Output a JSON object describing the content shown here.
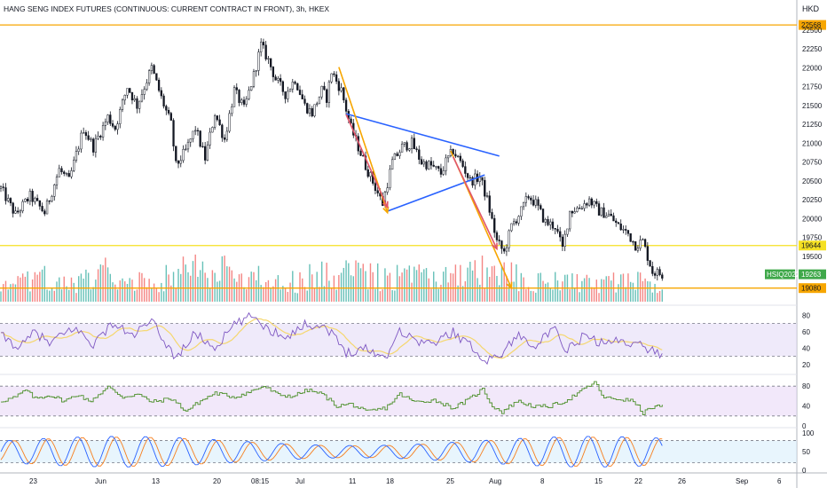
{
  "chart_data": [
    {
      "type": "candlestick",
      "title": "HANG SENG INDEX FUTURES (CONTINUOUS: CURRENT CONTRACT IN FRONT), 3h, HKEX",
      "currency": "HKD",
      "ylim": [
        18900,
        22640
      ],
      "y_ticks": [
        19500,
        19750,
        20000,
        20250,
        20500,
        20750,
        21000,
        21250,
        21500,
        21750,
        22000,
        22250,
        22500
      ],
      "x_ticks": [
        "23",
        "Jun",
        "13",
        "20",
        "08:15",
        "Jul",
        "11",
        "18",
        "25",
        "Aug",
        "8",
        "15",
        "22",
        "26",
        "Sep",
        "6"
      ],
      "price_path": [
        [
          0,
          20400
        ],
        [
          6,
          20050
        ],
        [
          12,
          20300
        ],
        [
          18,
          20080
        ],
        [
          24,
          20650
        ],
        [
          28,
          20500
        ],
        [
          34,
          21200
        ],
        [
          38,
          20950
        ],
        [
          44,
          21350
        ],
        [
          47,
          21200
        ],
        [
          52,
          21750
        ],
        [
          56,
          21500
        ],
        [
          62,
          22000
        ],
        [
          66,
          21600
        ],
        [
          70,
          21250
        ],
        [
          72,
          20700
        ],
        [
          76,
          20900
        ],
        [
          80,
          21200
        ],
        [
          84,
          20800
        ],
        [
          88,
          21400
        ],
        [
          92,
          21050
        ],
        [
          96,
          21700
        ],
        [
          100,
          21450
        ],
        [
          104,
          21900
        ],
        [
          107,
          22300
        ],
        [
          110,
          22100
        ],
        [
          113,
          21850
        ],
        [
          117,
          21650
        ],
        [
          121,
          21850
        ],
        [
          125,
          21500
        ],
        [
          128,
          21400
        ],
        [
          132,
          21700
        ],
        [
          134,
          21600
        ],
        [
          136,
          21950
        ],
        [
          140,
          21700
        ],
        [
          144,
          21200
        ],
        [
          150,
          20700
        ],
        [
          157,
          20200
        ],
        [
          161,
          20750
        ],
        [
          165,
          20950
        ],
        [
          169,
          21000
        ],
        [
          173,
          20750
        ],
        [
          177,
          20700
        ],
        [
          181,
          20600
        ],
        [
          183,
          20750
        ],
        [
          186,
          20900
        ],
        [
          190,
          20700
        ],
        [
          193,
          20500
        ],
        [
          197,
          20550
        ],
        [
          200,
          20250
        ],
        [
          204,
          19700
        ],
        [
          207,
          19550
        ],
        [
          210,
          19900
        ],
        [
          214,
          20100
        ],
        [
          217,
          20300
        ],
        [
          220,
          20200
        ],
        [
          224,
          19950
        ],
        [
          228,
          19900
        ],
        [
          231,
          19600
        ],
        [
          234,
          20100
        ],
        [
          238,
          20150
        ],
        [
          242,
          20250
        ],
        [
          246,
          20100
        ],
        [
          250,
          20050
        ],
        [
          254,
          19900
        ],
        [
          258,
          19800
        ],
        [
          261,
          19650
        ],
        [
          264,
          19700
        ],
        [
          268,
          19300
        ],
        [
          272,
          19260
        ]
      ],
      "volume_path": [
        [
          0,
          0.25
        ],
        [
          20,
          0.5
        ],
        [
          30,
          0.3
        ],
        [
          40,
          0.6
        ],
        [
          60,
          0.4
        ],
        [
          80,
          0.7
        ],
        [
          100,
          0.5
        ],
        [
          120,
          0.4
        ],
        [
          140,
          0.6
        ],
        [
          160,
          0.5
        ],
        [
          180,
          0.45
        ],
        [
          200,
          0.6
        ],
        [
          220,
          0.4
        ],
        [
          240,
          0.35
        ],
        [
          260,
          0.4
        ],
        [
          272,
          0.3
        ]
      ],
      "horizontal_levels": [
        {
          "price": 22568,
          "label": "22568",
          "color": "#f7a600"
        },
        {
          "price": 19644,
          "label": "19644",
          "color": "#f5e022"
        },
        {
          "price": 19080,
          "label": "19080",
          "color": "#f7a600"
        }
      ],
      "last_price": {
        "price": 19263,
        "label": "19263",
        "symbol": "HSIQ2022",
        "color": "#3fa84a"
      },
      "drawings": [
        {
          "name": "upper-trendline",
          "color": "#2962ff",
          "points": [
            [
              142,
              21390
            ],
            [
              205,
              20830
            ]
          ]
        },
        {
          "name": "lower-trendline",
          "color": "#2962ff",
          "points": [
            [
              159,
              20100
            ],
            [
              199,
              20580
            ]
          ]
        },
        {
          "name": "orange-arrow-1",
          "color": "#f7a600",
          "points": [
            [
              139,
              22010
            ],
            [
              159,
              20080
            ]
          ]
        },
        {
          "name": "red-arrow-1",
          "color": "#e0566b",
          "points": [
            [
              142,
              21380
            ],
            [
              159,
              20150
            ]
          ]
        },
        {
          "name": "orange-arrow-2",
          "color": "#f7a600",
          "points": [
            [
              185,
              20900
            ],
            [
              210,
              19080
            ]
          ]
        },
        {
          "name": "red-arrow-2",
          "color": "#e0566b",
          "points": [
            [
              186,
              20820
            ],
            [
              204,
              19600
            ]
          ]
        }
      ]
    },
    {
      "type": "line",
      "name": "rsi",
      "ylim": [
        10,
        90
      ],
      "y_ticks": [
        20,
        40,
        60,
        80
      ],
      "band": [
        30,
        70
      ],
      "path": [
        [
          0,
          55
        ],
        [
          8,
          40
        ],
        [
          14,
          60
        ],
        [
          20,
          45
        ],
        [
          30,
          65
        ],
        [
          38,
          45
        ],
        [
          46,
          70
        ],
        [
          54,
          55
        ],
        [
          62,
          72
        ],
        [
          68,
          45
        ],
        [
          72,
          28
        ],
        [
          80,
          58
        ],
        [
          88,
          40
        ],
        [
          96,
          68
        ],
        [
          104,
          80
        ],
        [
          110,
          62
        ],
        [
          118,
          55
        ],
        [
          126,
          70
        ],
        [
          134,
          65
        ],
        [
          142,
          35
        ],
        [
          150,
          40
        ],
        [
          158,
          28
        ],
        [
          164,
          62
        ],
        [
          170,
          50
        ],
        [
          178,
          45
        ],
        [
          186,
          60
        ],
        [
          194,
          40
        ],
        [
          200,
          25
        ],
        [
          206,
          33
        ],
        [
          212,
          55
        ],
        [
          220,
          45
        ],
        [
          228,
          62
        ],
        [
          232,
          35
        ],
        [
          240,
          55
        ],
        [
          248,
          45
        ],
        [
          256,
          50
        ],
        [
          264,
          42
        ],
        [
          272,
          32
        ]
      ]
    },
    {
      "type": "line",
      "name": "oscillator",
      "ylim": [
        0,
        100
      ],
      "y_ticks": [
        0,
        40,
        80
      ],
      "band": [
        20,
        80
      ],
      "path": [
        [
          0,
          50
        ],
        [
          6,
          58
        ],
        [
          10,
          72
        ],
        [
          14,
          55
        ],
        [
          20,
          62
        ],
        [
          26,
          50
        ],
        [
          32,
          64
        ],
        [
          36,
          48
        ],
        [
          44,
          78
        ],
        [
          50,
          58
        ],
        [
          56,
          64
        ],
        [
          62,
          48
        ],
        [
          70,
          55
        ],
        [
          76,
          30
        ],
        [
          82,
          50
        ],
        [
          88,
          66
        ],
        [
          96,
          58
        ],
        [
          102,
          68
        ],
        [
          108,
          80
        ],
        [
          114,
          62
        ],
        [
          120,
          60
        ],
        [
          126,
          72
        ],
        [
          132,
          64
        ],
        [
          138,
          40
        ],
        [
          144,
          44
        ],
        [
          150,
          28
        ],
        [
          158,
          36
        ],
        [
          164,
          64
        ],
        [
          170,
          48
        ],
        [
          178,
          52
        ],
        [
          186,
          36
        ],
        [
          192,
          52
        ],
        [
          198,
          74
        ],
        [
          202,
          40
        ],
        [
          206,
          28
        ],
        [
          212,
          50
        ],
        [
          220,
          38
        ],
        [
          226,
          40
        ],
        [
          232,
          50
        ],
        [
          238,
          68
        ],
        [
          244,
          88
        ],
        [
          248,
          56
        ],
        [
          254,
          54
        ],
        [
          260,
          50
        ],
        [
          264,
          26
        ],
        [
          268,
          38
        ],
        [
          272,
          40
        ]
      ]
    },
    {
      "type": "line",
      "name": "stochastic",
      "ylim": [
        0,
        110
      ],
      "y_ticks": [
        0,
        50,
        100
      ],
      "band": [
        20,
        80
      ],
      "period_k": 7,
      "lines": [
        {
          "color": "#2962ff"
        },
        {
          "color": "#f77f1e"
        }
      ]
    }
  ]
}
